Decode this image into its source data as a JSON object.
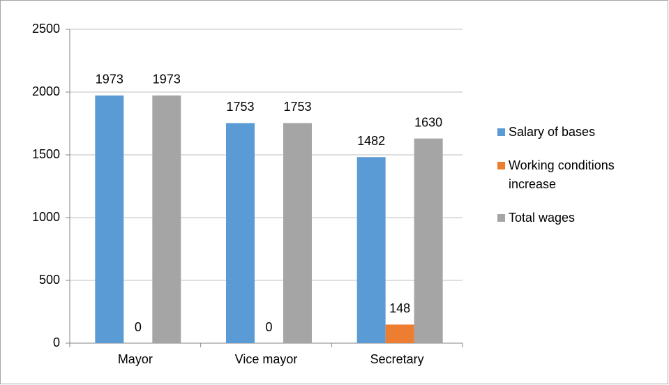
{
  "chart_data": {
    "type": "bar",
    "categories": [
      "Mayor",
      "Vice mayor",
      "Secretary"
    ],
    "series": [
      {
        "name": "Salary of bases",
        "color": "#5b9bd5",
        "values": [
          1973,
          1753,
          1482
        ]
      },
      {
        "name": "Working conditions increase",
        "color": "#ed7d31",
        "values": [
          0,
          0,
          148
        ]
      },
      {
        "name": "Total wages",
        "color": "#a5a5a5",
        "values": [
          1973,
          1753,
          1630
        ]
      }
    ],
    "ylim": [
      0,
      2500
    ],
    "yticks": [
      0,
      500,
      1000,
      1500,
      2000,
      2500
    ],
    "grid": true,
    "legend": "right"
  }
}
